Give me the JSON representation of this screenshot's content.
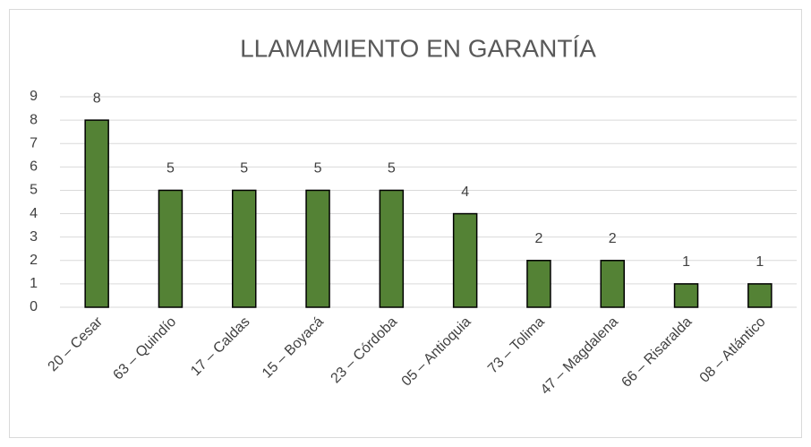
{
  "chart_data": {
    "type": "bar",
    "title": "LLAMAMIENTO EN GARANTÍA",
    "categories": [
      "20 – Cesar",
      "63 – Quindío",
      "17 – Caldas",
      "15 – Boyacá",
      "23 – Córdoba",
      "05 – Antioquia",
      "73 – Tolima",
      "47 – Magdalena",
      "66 – Risaralda",
      "08 – Atlántico"
    ],
    "values": [
      8,
      5,
      5,
      5,
      5,
      4,
      2,
      2,
      1,
      1
    ],
    "color": "#548235",
    "ylim": [
      0,
      9
    ],
    "yticks": [
      0,
      1,
      2,
      3,
      4,
      5,
      6,
      7,
      8,
      9
    ],
    "grid": true
  }
}
